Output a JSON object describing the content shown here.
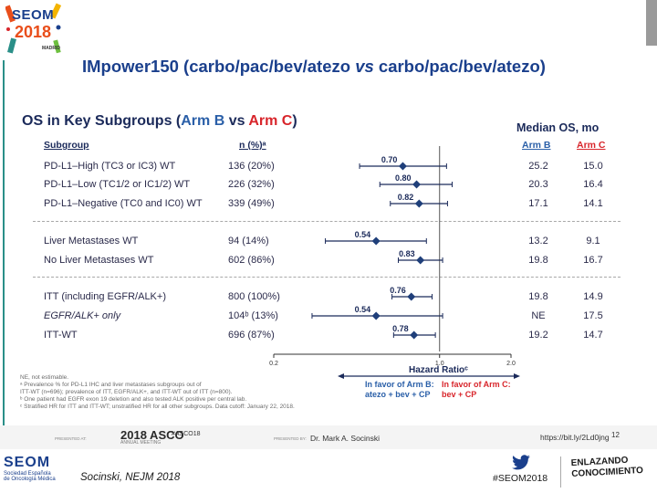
{
  "logo": {
    "brand": "SEOM",
    "year": "2018",
    "city": "MADRID"
  },
  "title": {
    "prefix": "IMpower150 (carbo/pac/bev/atezo ",
    "vs": "vs",
    "suffix": " carbo/pac/bev/atezo)"
  },
  "slide": {
    "heading_pre": "OS in Key Subgroups (",
    "heading_armb": "Arm B",
    "heading_vs": " vs ",
    "heading_armc": "Arm C",
    "heading_post": ")",
    "median_header": "Median OS, mo",
    "col_subgroup": "Subgroup",
    "col_n": "n (%)ᵃ",
    "col_armb": "Arm B",
    "col_armc": "Arm C"
  },
  "rows": [
    {
      "label": "PD-L1–High (TC3 or IC3) WT",
      "n": "136 (20%)",
      "hr": "0.70",
      "armb": "25.2",
      "armc": "15.0"
    },
    {
      "label": "PD-L1–Low (TC1/2 or IC1/2) WT",
      "n": "226 (32%)",
      "hr": "0.80",
      "armb": "20.3",
      "armc": "16.4"
    },
    {
      "label": "PD-L1–Negative (TC0 and IC0) WT",
      "n": "339 (49%)",
      "hr": "0.82",
      "armb": "17.1",
      "armc": "14.1"
    },
    {
      "label": "Liver Metastases WT",
      "n": "94 (14%)",
      "hr": "0.54",
      "armb": "13.2",
      "armc": "9.1"
    },
    {
      "label": "No Liver Metastases WT",
      "n": "602 (86%)",
      "hr": "0.83",
      "armb": "19.8",
      "armc": "16.7"
    },
    {
      "label": "ITT (including EGFR/ALK+)",
      "n": "800 (100%)",
      "hr": "0.76",
      "armb": "19.8",
      "armc": "14.9"
    },
    {
      "label": "EGFR/ALK+ only",
      "n": "104ᵇ (13%)",
      "hr": "0.54",
      "armb": "NE",
      "armc": "17.5"
    },
    {
      "label": "ITT-WT",
      "n": "696 (87%)",
      "hr": "0.78",
      "armb": "19.2",
      "armc": "14.7"
    }
  ],
  "axis": {
    "ticks": [
      "0.2",
      "1.0",
      "2.0"
    ],
    "label": "Hazard Ratioᶜ"
  },
  "favor": {
    "b_line1": "In favor of Arm B:",
    "b_line2": "atezo + bev + CP",
    "c_line1": "In favor of Arm C:",
    "c_line2": "bev + CP"
  },
  "footnotes": [
    "NE, not estimable.",
    "ᵃ Prevalence % for PD-L1 IHC and liver metastases subgroups out of",
    "ITT-WT (n=696); prevalence of ITT, EGFR/ALK+, and ITT-WT out of ITT (n=800).",
    "ᵇ One patient had EGFR exon 19 deletion and also tested ALK positive per central lab.",
    "ᶜ Stratified HR for ITT and ITT-WT; unstratified HR for all other subgroups. Data cutoff: January 22, 2018."
  ],
  "footer": {
    "presented_at": "PRESENTED AT:",
    "asco": "2018 ASCO",
    "asco_sub": "ANNUAL MEETING",
    "hashtag_asco": "#ASCO18",
    "presented_by": "PRESENTED BY:",
    "presenter": "Dr. Mark A. Socinski",
    "link": "https://bit.ly/2Ld0jng",
    "page": "12"
  },
  "bottom": {
    "seom_name": "SEOM",
    "seom_sub1": "Sociedad Española",
    "seom_sub2": "de Oncología Médica",
    "citation": "Socinski, NEJM 2018",
    "hashtag": "#SEOM2018",
    "tagline1": "ENLAZANDO",
    "tagline2": "CONOCIMIENTO"
  },
  "chart_data": {
    "type": "scatter",
    "title": "OS in Key Subgroups (Arm B vs Arm C)",
    "xlabel": "Hazard Ratio",
    "xscale": "log",
    "xlim": [
      0.2,
      2.0
    ],
    "reference_line": 1.0,
    "categories": [
      "PD-L1–High (TC3 or IC3) WT",
      "PD-L1–Low (TC1/2 or IC1/2) WT",
      "PD-L1–Negative (TC0 and IC0) WT",
      "Liver Metastases WT",
      "No Liver Metastases WT",
      "ITT (including EGFR/ALK+)",
      "EGFR/ALK+ only",
      "ITT-WT"
    ],
    "values": [
      0.7,
      0.8,
      0.82,
      0.54,
      0.83,
      0.76,
      0.54,
      0.78
    ],
    "ci_low": [
      0.46,
      0.56,
      0.62,
      0.33,
      0.67,
      0.63,
      0.29,
      0.64
    ],
    "ci_high": [
      1.07,
      1.13,
      1.08,
      0.88,
      1.03,
      0.93,
      1.03,
      0.96
    ],
    "colors": {
      "marker": "#1f3f7a",
      "ci": "#1b2a5a",
      "ref": "#555555"
    }
  }
}
